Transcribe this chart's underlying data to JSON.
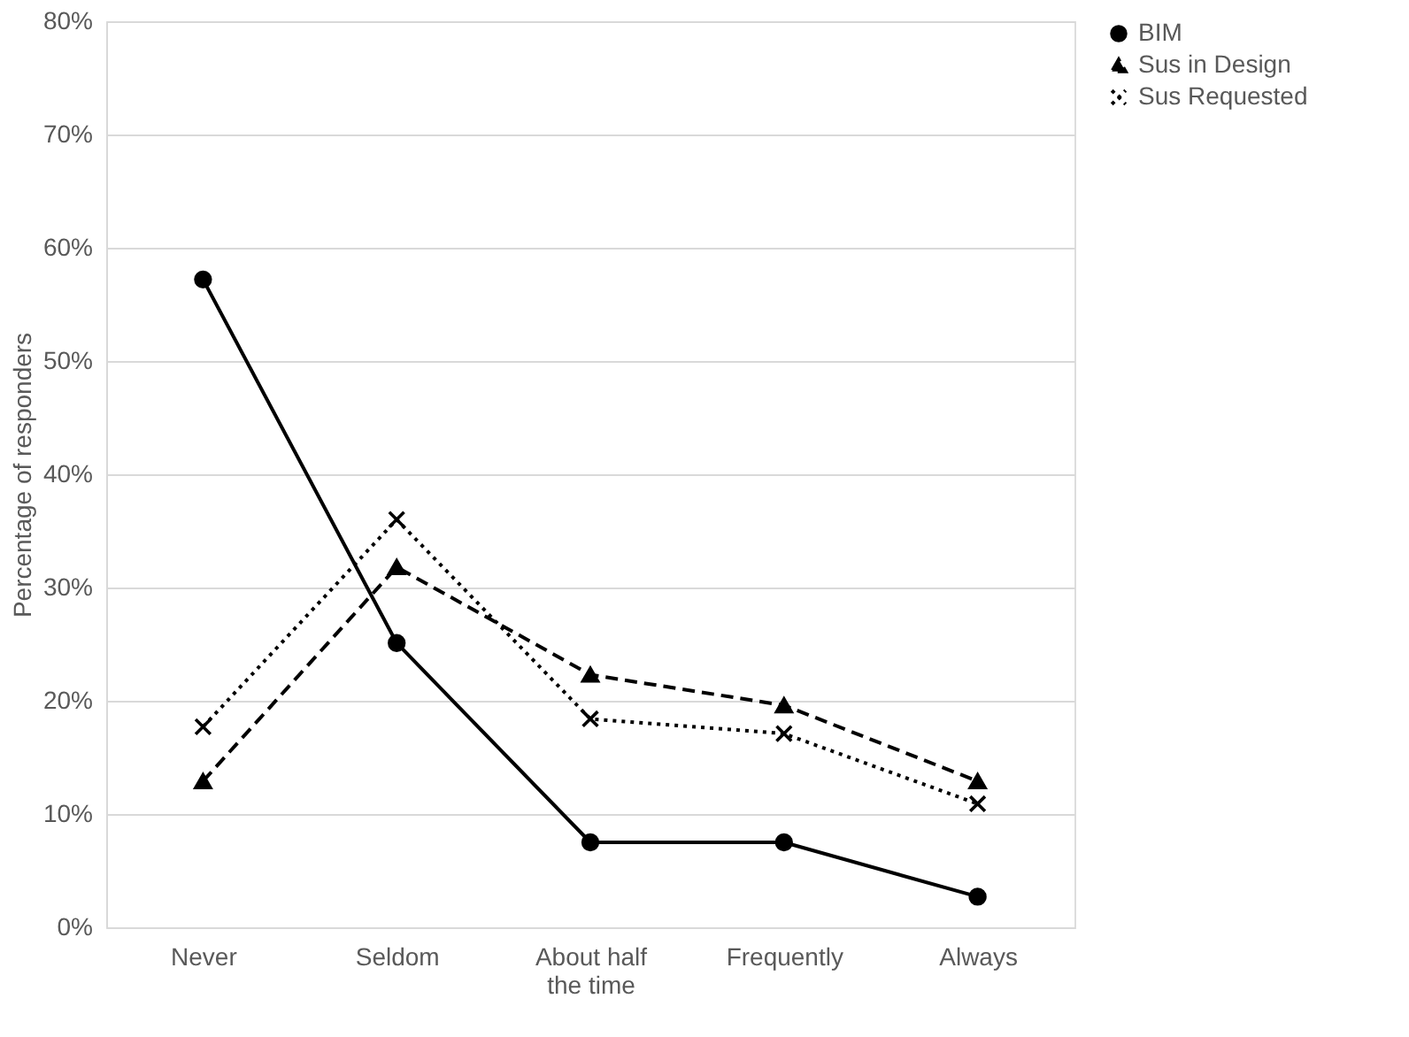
{
  "chart_data": {
    "type": "line",
    "ylabel": "Percentage of responders",
    "categories": [
      "Never",
      "Seldom",
      "About half the time",
      "Frequently",
      "Always"
    ],
    "series": [
      {
        "name": "BIM",
        "color": "#000000",
        "marker": "circle",
        "line_style": "solid",
        "values": [
          57.2,
          25.1,
          7.5,
          7.5,
          2.7
        ]
      },
      {
        "name": "Sus in Design",
        "color": "#000000",
        "marker": "triangle",
        "line_style": "dashed",
        "values": [
          12.9,
          31.8,
          22.3,
          19.6,
          12.9
        ]
      },
      {
        "name": "Sus Requested",
        "color": "#000000",
        "marker": "cross",
        "line_style": "dotted",
        "values": [
          17.7,
          36.0,
          18.4,
          17.1,
          10.9
        ]
      }
    ],
    "ylim": [
      0,
      80
    ],
    "yticks": [
      {
        "value": 0,
        "label": "0%"
      },
      {
        "value": 10,
        "label": "10%"
      },
      {
        "value": 20,
        "label": "20%"
      },
      {
        "value": 30,
        "label": "30%"
      },
      {
        "value": 40,
        "label": "40%"
      },
      {
        "value": 50,
        "label": "50%"
      },
      {
        "value": 60,
        "label": "60%"
      },
      {
        "value": 70,
        "label": "70%"
      },
      {
        "value": 80,
        "label": "80%"
      }
    ],
    "grid": "y",
    "legend": "right"
  }
}
